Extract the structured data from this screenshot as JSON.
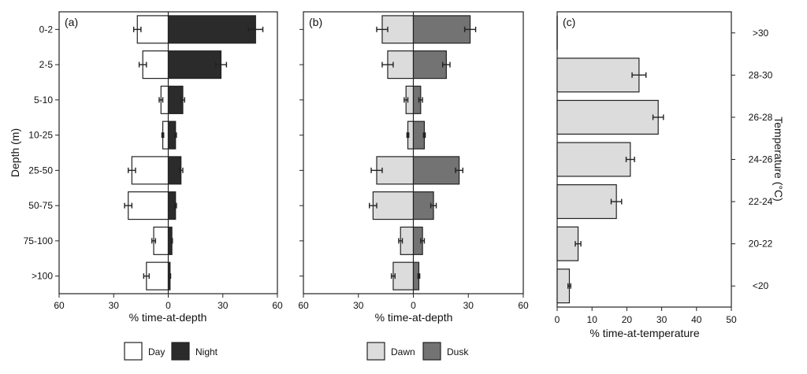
{
  "colors": {
    "day": "#ffffff",
    "night": "#2b2b2b",
    "dawn": "#dcdcdc",
    "dusk": "#737373",
    "temperature": "#dcdcdc"
  },
  "chart_data": [
    {
      "panel": "(a)",
      "type": "bar",
      "orientation": "horizontal-diverging",
      "categories": [
        "0-2",
        "2-5",
        "5-10",
        "10-25",
        "25-50",
        "50-75",
        "75-100",
        ">100"
      ],
      "ylabel": "Depth (m)",
      "xlabel": "% time-at-depth",
      "xlim": [
        -60,
        60
      ],
      "xticks": [
        -60,
        -30,
        0,
        30,
        60
      ],
      "xtick_labels": [
        "60",
        "30",
        "0",
        "30",
        "60"
      ],
      "series": [
        {
          "name": "Day",
          "side": "left",
          "color_key": "day",
          "values": [
            17,
            14,
            4,
            3,
            20,
            22,
            8,
            12
          ],
          "errors": [
            2,
            2,
            1,
            0.5,
            2,
            2,
            1,
            1.5
          ]
        },
        {
          "name": "Night",
          "side": "right",
          "color_key": "night",
          "values": [
            48,
            29,
            8,
            4,
            7,
            4,
            2,
            1
          ],
          "errors": [
            4,
            3,
            1,
            0.5,
            1,
            0.5,
            0.3,
            0.3
          ]
        }
      ]
    },
    {
      "panel": "(b)",
      "type": "bar",
      "orientation": "horizontal-diverging",
      "categories": [
        "0-2",
        "2-5",
        "5-10",
        "10-25",
        "25-50",
        "50-75",
        "75-100",
        ">100"
      ],
      "xlabel": "% time-at-depth",
      "xlim": [
        -60,
        60
      ],
      "xticks": [
        -60,
        -30,
        0,
        30,
        60
      ],
      "xtick_labels": [
        "60",
        "30",
        "0",
        "30",
        "60"
      ],
      "series": [
        {
          "name": "Dawn",
          "side": "left",
          "color_key": "dawn",
          "values": [
            17,
            14,
            4,
            3,
            20,
            22,
            7,
            11
          ],
          "errors": [
            3,
            3,
            1,
            0.5,
            3,
            2,
            1,
            1
          ]
        },
        {
          "name": "Dusk",
          "side": "right",
          "color_key": "dusk",
          "values": [
            31,
            18,
            4,
            6,
            25,
            11,
            5,
            3
          ],
          "errors": [
            3,
            2,
            1,
            0.5,
            2,
            1.5,
            1,
            0.5
          ]
        }
      ]
    },
    {
      "panel": "(c)",
      "type": "bar",
      "orientation": "horizontal",
      "categories": [
        ">30",
        "28-30",
        "26-28",
        "24-26",
        "22-24",
        "20-22",
        "<20"
      ],
      "ylabel": "Temperature (°C)",
      "xlabel": "% time-at-temperature",
      "xlim": [
        0,
        50
      ],
      "xticks": [
        0,
        10,
        20,
        30,
        40,
        50
      ],
      "values": [
        0,
        23.5,
        29,
        21,
        17,
        6,
        3.5
      ],
      "errors": [
        0,
        2,
        1.5,
        1.2,
        1.5,
        0.8,
        0.4
      ]
    }
  ],
  "legend_a": {
    "day": "Day",
    "night": "Night"
  },
  "legend_b": {
    "dawn": "Dawn",
    "dusk": "Dusk"
  }
}
